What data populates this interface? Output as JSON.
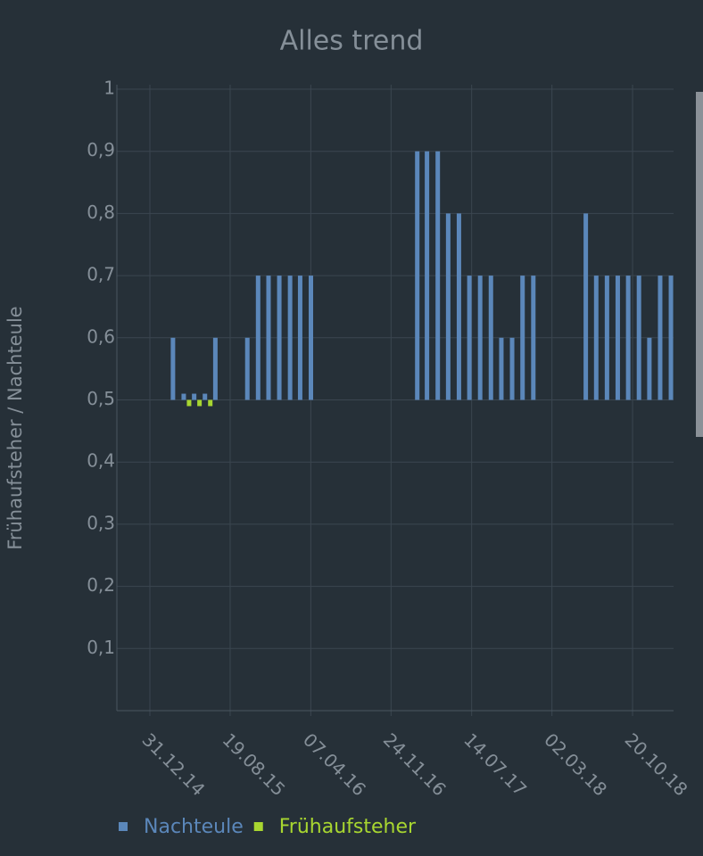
{
  "chart_data": {
    "type": "bar",
    "title": "Alles trend",
    "y_label": "Frühaufsteher / Nachteule",
    "base": 0.5,
    "grid": true,
    "legend": "bottom",
    "x": [
      "2015-03-01",
      "2015-04-01",
      "2015-05-01",
      "2015-06-01",
      "2015-07-01",
      "2015-10-01",
      "2015-11-01",
      "2015-12-01",
      "2016-01-01",
      "2016-02-01",
      "2016-03-01",
      "2016-04-01",
      "2017-02-01",
      "2017-03-01",
      "2017-04-01",
      "2017-05-01",
      "2017-06-01",
      "2017-07-01",
      "2017-08-01",
      "2017-09-01",
      "2017-10-01",
      "2017-11-01",
      "2017-12-01",
      "2018-01-01",
      "2018-06-01",
      "2018-07-01",
      "2018-08-01",
      "2018-09-01",
      "2018-10-01",
      "2018-11-01",
      "2018-12-01",
      "2019-01-01",
      "2019-02-01"
    ],
    "series": [
      {
        "name": "Nachteule",
        "color": "#5b87ba",
        "values": [
          0.6,
          0.51,
          0.51,
          0.51,
          0.6,
          0.6,
          0.7,
          0.7,
          0.7,
          0.7,
          0.7,
          0.7,
          0.9,
          0.9,
          0.9,
          0.8,
          0.8,
          0.7,
          0.7,
          0.7,
          0.6,
          0.6,
          0.7,
          0.7,
          0.8,
          0.7,
          0.7,
          0.7,
          0.7,
          0.7,
          0.6,
          0.7,
          0.7
        ]
      },
      {
        "name": "Frühaufsteher",
        "color": "#a8d630",
        "values": [
          null,
          0.49,
          0.49,
          0.49,
          null,
          null,
          null,
          null,
          null,
          null,
          null,
          null,
          null,
          null,
          null,
          null,
          null,
          null,
          null,
          null,
          null,
          null,
          null,
          null,
          null,
          null,
          null,
          null,
          null,
          null,
          null,
          null,
          null
        ]
      }
    ],
    "xlim": [
      "2014-09-27",
      "2019-02-15"
    ],
    "xticks": [
      {
        "value": "2014-12-31",
        "label": "31.12.14"
      },
      {
        "value": "2015-08-19",
        "label": "19.08.15"
      },
      {
        "value": "2016-04-07",
        "label": "07.04.16"
      },
      {
        "value": "2016-11-24",
        "label": "24.11.16"
      },
      {
        "value": "2017-07-14",
        "label": "14.07.17"
      },
      {
        "value": "2018-03-02",
        "label": "02.03.18"
      },
      {
        "value": "2018-10-20",
        "label": "20.10.18"
      }
    ],
    "ylim": [
      0,
      1
    ],
    "yticks": [
      {
        "value": 0.1,
        "label": "0,1"
      },
      {
        "value": 0.2,
        "label": "0,2"
      },
      {
        "value": 0.3,
        "label": "0,3"
      },
      {
        "value": 0.4,
        "label": "0,4"
      },
      {
        "value": 0.5,
        "label": "0,5"
      },
      {
        "value": 0.6,
        "label": "0,6"
      },
      {
        "value": 0.7,
        "label": "0,7"
      },
      {
        "value": 0.8,
        "label": "0,8"
      },
      {
        "value": 0.9,
        "label": "0,9"
      },
      1
    ]
  }
}
